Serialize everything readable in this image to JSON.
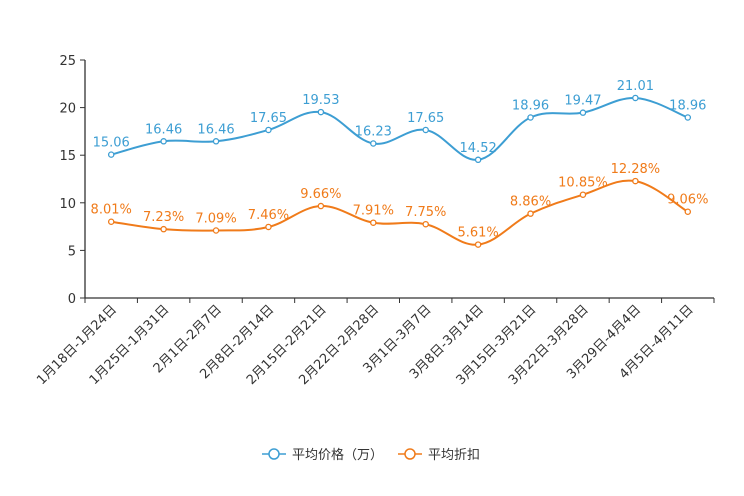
{
  "chart_data": {
    "type": "line",
    "categories": [
      "1月18日-1月24日",
      "1月25日-1月31日",
      "2月1日-2月7日",
      "2月8日-2月14日",
      "2月15日-2月21日",
      "2月22日-2月28日",
      "3月1日-3月7日",
      "3月8日-3月14日",
      "3月15日-3月21日",
      "3月22日-3月28日",
      "3月29日-4月4日",
      "4月5日-4月11日"
    ],
    "ylim": [
      0,
      25
    ],
    "yticks": [
      0,
      5,
      10,
      15,
      20,
      25
    ],
    "grid": false,
    "legend_position": "bottom-center",
    "series": [
      {
        "name": "平均价格（万）",
        "color": "#3d9ed3",
        "values": [
          15.06,
          16.46,
          16.46,
          17.65,
          19.53,
          16.23,
          17.65,
          14.52,
          18.96,
          19.47,
          21.01,
          18.96
        ],
        "labels": [
          "15.06",
          "16.46",
          "16.46",
          "17.65",
          "19.53",
          "16.23",
          "17.65",
          "14.52",
          "18.96",
          "19.47",
          "21.01",
          "18.96"
        ]
      },
      {
        "name": "平均折扣",
        "color": "#f07b1a",
        "values": [
          8.01,
          7.23,
          7.09,
          7.46,
          9.66,
          7.91,
          7.75,
          5.61,
          8.86,
          10.85,
          12.28,
          9.06
        ],
        "labels": [
          "8.01%",
          "7.23%",
          "7.09%",
          "7.46%",
          "9.66%",
          "7.91%",
          "7.75%",
          "5.61%",
          "8.86%",
          "10.85%",
          "12.28%",
          "9.06%"
        ]
      }
    ]
  }
}
